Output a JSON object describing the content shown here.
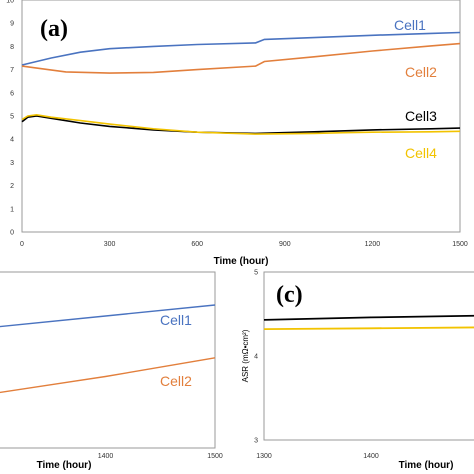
{
  "chart_data": [
    {
      "type": "line",
      "panel_label": "(a)",
      "xlabel": "Time (hour)",
      "xlim": [
        0,
        1500
      ],
      "ylim": [
        0,
        10
      ],
      "xticks": [
        "0",
        "300",
        "600",
        "900",
        "1200",
        "1500"
      ],
      "yticks": [
        "0",
        "1",
        "2",
        "3",
        "4",
        "5",
        "6",
        "7",
        "8",
        "9",
        "10"
      ],
      "series": [
        {
          "name": "Cell1",
          "color": "#4a73c0",
          "points": [
            [
              0,
              7.2
            ],
            [
              100,
              7.5
            ],
            [
              200,
              7.75
            ],
            [
              300,
              7.9
            ],
            [
              450,
              8.0
            ],
            [
              600,
              8.08
            ],
            [
              800,
              8.15
            ],
            [
              830,
              8.3
            ],
            [
              1000,
              8.38
            ],
            [
              1200,
              8.48
            ],
            [
              1400,
              8.56
            ],
            [
              1500,
              8.6
            ]
          ]
        },
        {
          "name": "Cell2",
          "color": "#e27f3c",
          "points": [
            [
              0,
              7.15
            ],
            [
              60,
              7.05
            ],
            [
              150,
              6.9
            ],
            [
              300,
              6.85
            ],
            [
              450,
              6.88
            ],
            [
              600,
              7.0
            ],
            [
              800,
              7.15
            ],
            [
              830,
              7.35
            ],
            [
              1000,
              7.55
            ],
            [
              1200,
              7.8
            ],
            [
              1400,
              8.02
            ],
            [
              1500,
              8.12
            ]
          ]
        },
        {
          "name": "Cell3",
          "color": "#000000",
          "points": [
            [
              0,
              4.75
            ],
            [
              20,
              4.95
            ],
            [
              50,
              5.0
            ],
            [
              100,
              4.9
            ],
            [
              200,
              4.7
            ],
            [
              300,
              4.55
            ],
            [
              450,
              4.4
            ],
            [
              600,
              4.3
            ],
            [
              800,
              4.25
            ],
            [
              1000,
              4.32
            ],
            [
              1200,
              4.4
            ],
            [
              1400,
              4.45
            ],
            [
              1500,
              4.48
            ]
          ]
        },
        {
          "name": "Cell4",
          "color": "#f2c300",
          "points": [
            [
              0,
              4.85
            ],
            [
              20,
              5.0
            ],
            [
              50,
              5.05
            ],
            [
              100,
              4.95
            ],
            [
              200,
              4.8
            ],
            [
              300,
              4.65
            ],
            [
              450,
              4.45
            ],
            [
              600,
              4.3
            ],
            [
              800,
              4.22
            ],
            [
              1000,
              4.25
            ],
            [
              1100,
              4.28
            ],
            [
              1200,
              4.3
            ],
            [
              1400,
              4.32
            ],
            [
              1500,
              4.34
            ]
          ]
        }
      ]
    },
    {
      "type": "line",
      "xlabel": "Time (hour)",
      "xlim": [
        1300,
        1500
      ],
      "xticks": [
        "1400",
        "1500"
      ],
      "series": [
        {
          "name": "Cell1",
          "color": "#4a73c0",
          "points": [
            [
              1300,
              8.4
            ],
            [
              1400,
              8.5
            ],
            [
              1500,
              8.6
            ]
          ]
        },
        {
          "name": "Cell2",
          "color": "#e27f3c",
          "points": [
            [
              1300,
              7.8
            ],
            [
              1400,
              7.95
            ],
            [
              1500,
              8.12
            ]
          ]
        }
      ]
    },
    {
      "type": "line",
      "panel_label": "(c)",
      "xlabel": "Time (hour)",
      "ylabel": "ASR (mΩ•cm²)",
      "xlim": [
        1300,
        1500
      ],
      "ylim": [
        3,
        5
      ],
      "xticks": [
        "1300",
        "1400"
      ],
      "yticks": [
        "3",
        "4",
        "5"
      ],
      "series": [
        {
          "color": "#000000",
          "points": [
            [
              1300,
              4.43
            ],
            [
              1400,
              4.46
            ],
            [
              1500,
              4.48
            ]
          ]
        },
        {
          "color": "#f2c300",
          "points": [
            [
              1300,
              4.32
            ],
            [
              1400,
              4.33
            ],
            [
              1500,
              4.34
            ]
          ]
        }
      ]
    }
  ]
}
